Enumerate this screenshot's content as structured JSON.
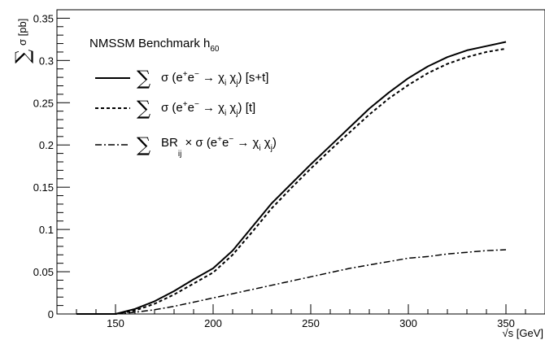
{
  "chart_data": {
    "type": "line",
    "title": "",
    "xlabel": "√s [GeV]",
    "ylabel": "σ [pb]",
    "xlim": [
      120,
      370
    ],
    "ylim": [
      0,
      0.36
    ],
    "x_ticks": [
      150,
      200,
      250,
      300,
      350
    ],
    "x_tick_labels": [
      "150",
      "200",
      "250",
      "300",
      "350"
    ],
    "y_ticks": [
      0,
      0.05,
      0.1,
      0.15,
      0.2,
      0.25,
      0.3,
      0.35
    ],
    "y_tick_labels": [
      "0",
      "0.05",
      "0.1",
      "0.15",
      "0.2",
      "0.25",
      "0.3",
      "0.35"
    ],
    "grid": false,
    "legend_position": "top-left",
    "legend_title": {
      "text": "NMSSM Benchmark h",
      "sub": "60"
    },
    "series": [
      {
        "name": "∑ σ (e+e− → χi χj) [s+t]",
        "style": "solid",
        "x": [
          130,
          140,
          150,
          160,
          170,
          180,
          190,
          200,
          210,
          220,
          230,
          240,
          250,
          260,
          270,
          280,
          290,
          300,
          310,
          320,
          330,
          340,
          350
        ],
        "y": [
          0,
          0,
          0,
          0.006,
          0.015,
          0.027,
          0.041,
          0.054,
          0.075,
          0.103,
          0.131,
          0.154,
          0.177,
          0.199,
          0.221,
          0.243,
          0.262,
          0.279,
          0.293,
          0.304,
          0.312,
          0.317,
          0.322
        ]
      },
      {
        "name": "∑ σ (e+e− → χi χj) [t]",
        "style": "dashed",
        "x": [
          150,
          160,
          170,
          180,
          190,
          200,
          210,
          220,
          230,
          240,
          250,
          260,
          270,
          280,
          290,
          300,
          310,
          320,
          330,
          340,
          350
        ],
        "y": [
          0,
          0.004,
          0.012,
          0.023,
          0.036,
          0.049,
          0.07,
          0.097,
          0.125,
          0.149,
          0.172,
          0.194,
          0.215,
          0.236,
          0.255,
          0.271,
          0.285,
          0.296,
          0.304,
          0.31,
          0.314
        ]
      },
      {
        "name": "∑ BRij × σ (e+e− → χi χj)",
        "style": "dashdot",
        "x": [
          150,
          160,
          170,
          180,
          190,
          200,
          210,
          220,
          230,
          240,
          250,
          260,
          270,
          280,
          290,
          300,
          310,
          320,
          330,
          340,
          350
        ],
        "y": [
          0,
          0.002,
          0.005,
          0.009,
          0.014,
          0.019,
          0.024,
          0.029,
          0.034,
          0.039,
          0.044,
          0.049,
          0.054,
          0.058,
          0.062,
          0.066,
          0.068,
          0.071,
          0.073,
          0.075,
          0.076
        ]
      }
    ],
    "legend_entries": [
      {
        "sum": "∑",
        "text1": "σ (e",
        "sup1": "+",
        "text2": "e",
        "sup2": "−",
        "text3": " → χ",
        "subi": "i",
        "text4": " χ",
        "subj": "j",
        "text5": ") [s+t]"
      },
      {
        "sum": "∑",
        "text1": "σ (e",
        "sup1": "+",
        "text2": "e",
        "sup2": "−",
        "text3": " → χ",
        "subi": "i",
        "text4": " χ",
        "subj": "j",
        "text5": ") [t]"
      },
      {
        "sum": "∑",
        "text1": "BR",
        "sub0": "ij",
        "text1b": " × σ (e",
        "sup1": "+",
        "text2": "e",
        "sup2": "−",
        "text3": " → χ",
        "subi": "i",
        "text4": " χ",
        "subj": "j",
        "text5": ")"
      }
    ],
    "ylabel_parts": {
      "sum": "∑",
      "text": "σ [pb]"
    }
  }
}
